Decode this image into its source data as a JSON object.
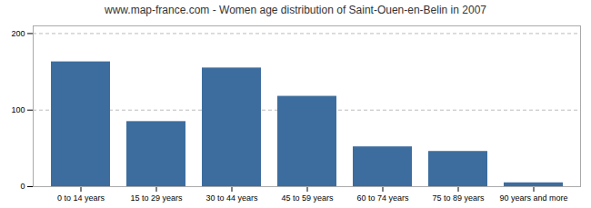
{
  "chart_data": {
    "type": "bar",
    "title": "www.map-france.com - Women age distribution of Saint-Ouen-en-Belin in 2007",
    "categories": [
      "0 to 14 years",
      "15 to 29 years",
      "30 to 44 years",
      "45 to 59 years",
      "60 to 74 years",
      "75 to 89 years",
      "90 years and more"
    ],
    "values": [
      163,
      85,
      155,
      118,
      52,
      46,
      5
    ],
    "color": "#3d6d9e",
    "ylim": [
      0,
      210
    ],
    "yticks": [
      0,
      100,
      200
    ],
    "grid": true
  }
}
